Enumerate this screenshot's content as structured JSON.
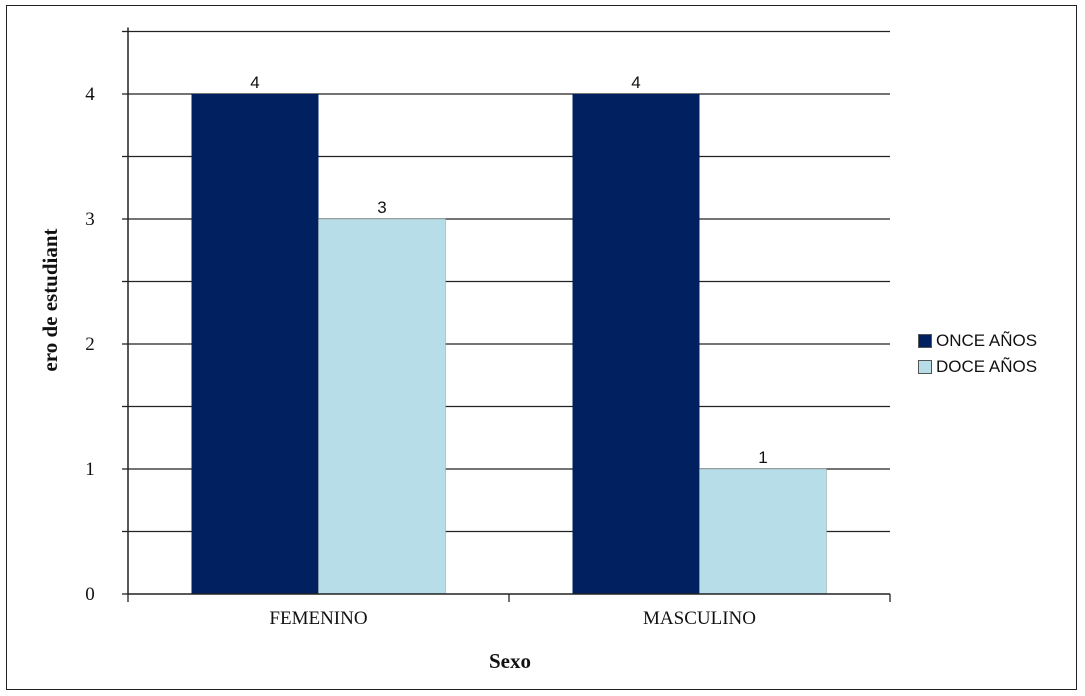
{
  "chart_data": {
    "type": "bar",
    "categories": [
      "FEMENINO",
      "MASCULINO"
    ],
    "series": [
      {
        "name": "ONCE AÑOS",
        "values": [
          4,
          4
        ],
        "color": "#002060"
      },
      {
        "name": "DOCE AÑOS",
        "values": [
          3,
          1
        ],
        "color": "#b7dde8"
      }
    ],
    "title": "",
    "xlabel": "Sexo",
    "ylabel": "ero de estudiant",
    "ylim": [
      0,
      4.5
    ],
    "yticks": [
      "0",
      "1",
      "2",
      "3",
      "4"
    ],
    "grid": true,
    "legend_position": "right"
  }
}
